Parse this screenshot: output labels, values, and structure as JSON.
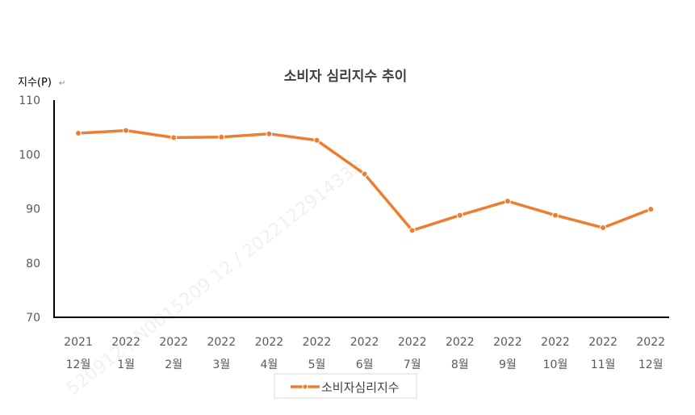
{
  "chart_data": {
    "type": "line",
    "title": "소비자 심리지수 추이",
    "ylabel": "지수(P)",
    "ylim": [
      70,
      110
    ],
    "yticks": [
      "110",
      "100",
      "90",
      "80",
      "70"
    ],
    "categories": [
      [
        "2021",
        "12월"
      ],
      [
        "2022",
        "1월"
      ],
      [
        "2022",
        "2월"
      ],
      [
        "2022",
        "3월"
      ],
      [
        "2022",
        "4월"
      ],
      [
        "2022",
        "5월"
      ],
      [
        "2022",
        "6월"
      ],
      [
        "2022",
        "7월"
      ],
      [
        "2022",
        "8월"
      ],
      [
        "2022",
        "9월"
      ],
      [
        "2022",
        "10월"
      ],
      [
        "2022",
        "11월"
      ],
      [
        "2022",
        "12월"
      ]
    ],
    "series": [
      {
        "name": "소비자심리지수",
        "color": "#ED7D31",
        "values": [
          103.9,
          104.4,
          103.1,
          103.2,
          103.8,
          102.6,
          96.4,
          86.0,
          88.8,
          91.4,
          88.8,
          86.5,
          89.9
        ]
      }
    ],
    "grid": false,
    "legend": "bottom"
  },
  "watermark": "520912 / N0015209 12 / 2022122914333"
}
